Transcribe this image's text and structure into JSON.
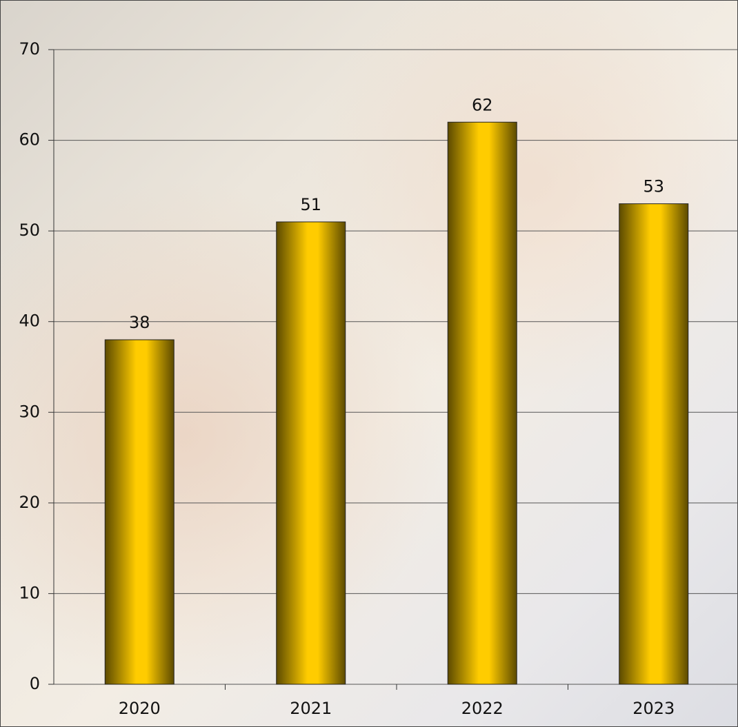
{
  "chart_data": {
    "type": "bar",
    "categories": [
      "2020",
      "2021",
      "2022",
      "2023"
    ],
    "values": [
      38,
      51,
      62,
      53
    ],
    "color": "#ffcc00",
    "ylim": [
      0,
      70
    ],
    "yticks": [
      0,
      10,
      20,
      30,
      40,
      50,
      60,
      70
    ],
    "grid": true
  }
}
